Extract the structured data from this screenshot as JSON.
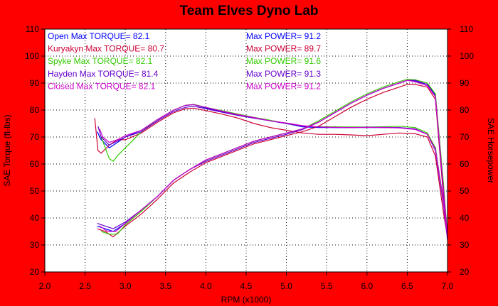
{
  "chart_data": {
    "type": "line",
    "title": "Team Elves Dyno Lab",
    "xlabel": "RPM (x1000)",
    "ylabel_left": "SAE Torque (ft-lbs)",
    "ylabel_right": "SAE Horsepower",
    "xlim": [
      2.0,
      7.0
    ],
    "ylim": [
      20,
      110
    ],
    "x_ticks": [
      "2.0",
      "2.5",
      "3.0",
      "3.5",
      "4.0",
      "4.5",
      "5.0",
      "5.5",
      "6.0",
      "6.5",
      "7.0"
    ],
    "y_ticks": [
      "20",
      "30",
      "40",
      "50",
      "60",
      "70",
      "80",
      "90",
      "100",
      "110"
    ],
    "background_color": "#ffffff",
    "frame_color": "#ff0000",
    "series": [
      {
        "name": "Open",
        "color": "#0000ff",
        "legend_torque": "Open  Max TORQUE= 82.1",
        "legend_power": "Max POWER= 91.2",
        "torque": [
          [
            2.65,
            72
          ],
          [
            2.7,
            69
          ],
          [
            2.8,
            66
          ],
          [
            2.9,
            68
          ],
          [
            3.0,
            70
          ],
          [
            3.2,
            72.5
          ],
          [
            3.4,
            76.5
          ],
          [
            3.6,
            80
          ],
          [
            3.75,
            81.7
          ],
          [
            3.85,
            82
          ],
          [
            4.0,
            80.8
          ],
          [
            4.2,
            79.5
          ],
          [
            4.4,
            78.2
          ],
          [
            4.6,
            77
          ],
          [
            4.8,
            76
          ],
          [
            5.0,
            75
          ],
          [
            5.2,
            73.8
          ],
          [
            5.4,
            73.5
          ],
          [
            5.6,
            73.5
          ],
          [
            5.8,
            73.5
          ],
          [
            6.0,
            73.5
          ],
          [
            6.2,
            73.5
          ],
          [
            6.4,
            73.5
          ],
          [
            6.6,
            73
          ],
          [
            6.75,
            71
          ],
          [
            6.85,
            66
          ],
          [
            6.95,
            46
          ],
          [
            7.0,
            33
          ]
        ],
        "power": [
          [
            2.65,
            37
          ],
          [
            2.75,
            36
          ],
          [
            2.85,
            35
          ],
          [
            3.0,
            38
          ],
          [
            3.2,
            43
          ],
          [
            3.4,
            48
          ],
          [
            3.6,
            54
          ],
          [
            3.8,
            58
          ],
          [
            4.0,
            61.5
          ],
          [
            4.3,
            65
          ],
          [
            4.6,
            68.5
          ],
          [
            5.0,
            71.5
          ],
          [
            5.2,
            73
          ],
          [
            5.4,
            75.5
          ],
          [
            5.6,
            79
          ],
          [
            5.8,
            82.5
          ],
          [
            6.0,
            85.5
          ],
          [
            6.2,
            88
          ],
          [
            6.4,
            90
          ],
          [
            6.5,
            91
          ],
          [
            6.6,
            90.7
          ],
          [
            6.75,
            89.5
          ],
          [
            6.85,
            85.5
          ],
          [
            6.95,
            52
          ],
          [
            7.0,
            33
          ]
        ]
      },
      {
        "name": "Kuryakyn",
        "color": "#cc0033",
        "legend_torque": "Kuryakyn  Max TORQUE= 80.7",
        "legend_power": "Max POWER= 89.7",
        "torque": [
          [
            2.62,
            77
          ],
          [
            2.66,
            65
          ],
          [
            2.7,
            64
          ],
          [
            2.8,
            67
          ],
          [
            2.9,
            69
          ],
          [
            3.0,
            69
          ],
          [
            3.2,
            71.5
          ],
          [
            3.4,
            75.5
          ],
          [
            3.6,
            79
          ],
          [
            3.75,
            80.5
          ],
          [
            3.85,
            80.7
          ],
          [
            4.0,
            79.8
          ],
          [
            4.2,
            78.5
          ],
          [
            4.4,
            77
          ],
          [
            4.6,
            75
          ],
          [
            4.8,
            73.5
          ],
          [
            5.0,
            72.5
          ],
          [
            5.2,
            71.5
          ],
          [
            5.4,
            71
          ],
          [
            5.6,
            71
          ],
          [
            5.8,
            70.8
          ],
          [
            6.0,
            70.5
          ],
          [
            6.2,
            71
          ],
          [
            6.4,
            71.5
          ],
          [
            6.6,
            71.2
          ],
          [
            6.75,
            70
          ],
          [
            6.85,
            63
          ],
          [
            6.95,
            42
          ],
          [
            7.0,
            33
          ]
        ],
        "power": [
          [
            2.65,
            36
          ],
          [
            2.75,
            35
          ],
          [
            2.85,
            33
          ],
          [
            3.0,
            37
          ],
          [
            3.2,
            41.5
          ],
          [
            3.4,
            47
          ],
          [
            3.6,
            53
          ],
          [
            3.8,
            57
          ],
          [
            4.0,
            60.5
          ],
          [
            4.3,
            64
          ],
          [
            4.6,
            67.5
          ],
          [
            5.0,
            70.5
          ],
          [
            5.2,
            72
          ],
          [
            5.4,
            74
          ],
          [
            5.6,
            77.5
          ],
          [
            5.8,
            81
          ],
          [
            6.0,
            84
          ],
          [
            6.2,
            86.5
          ],
          [
            6.4,
            88.5
          ],
          [
            6.5,
            89.5
          ],
          [
            6.6,
            89.5
          ],
          [
            6.75,
            88.5
          ],
          [
            6.85,
            84
          ],
          [
            6.95,
            48
          ],
          [
            7.0,
            33
          ]
        ]
      },
      {
        "name": "Spyke",
        "color": "#33cc00",
        "legend_torque": "Spyke  Max TORQUE= 82.1",
        "legend_power": "Max POWER= 91.6",
        "torque": [
          [
            2.7,
            70
          ],
          [
            2.75,
            66
          ],
          [
            2.8,
            62
          ],
          [
            2.85,
            61
          ],
          [
            2.9,
            63
          ],
          [
            3.0,
            66
          ],
          [
            3.1,
            69
          ],
          [
            3.2,
            72
          ],
          [
            3.4,
            76.5
          ],
          [
            3.6,
            80
          ],
          [
            3.75,
            81.8
          ],
          [
            3.85,
            82.1
          ],
          [
            4.0,
            81
          ],
          [
            4.2,
            79.8
          ],
          [
            4.4,
            78.5
          ],
          [
            4.6,
            77.3
          ],
          [
            4.8,
            76.2
          ],
          [
            5.0,
            75
          ],
          [
            5.2,
            74
          ],
          [
            5.4,
            73.8
          ],
          [
            5.6,
            73.8
          ],
          [
            5.8,
            73.7
          ],
          [
            6.0,
            73.7
          ],
          [
            6.2,
            73.8
          ],
          [
            6.4,
            74
          ],
          [
            6.6,
            73.5
          ],
          [
            6.75,
            71.5
          ],
          [
            6.85,
            66
          ],
          [
            6.95,
            46
          ],
          [
            7.0,
            33
          ]
        ],
        "power": [
          [
            2.7,
            35
          ],
          [
            2.8,
            34
          ],
          [
            2.9,
            34
          ],
          [
            3.0,
            37.5
          ],
          [
            3.2,
            42.5
          ],
          [
            3.4,
            48
          ],
          [
            3.6,
            54
          ],
          [
            3.8,
            58
          ],
          [
            4.0,
            61.5
          ],
          [
            4.3,
            65
          ],
          [
            4.6,
            68.5
          ],
          [
            5.0,
            71.5
          ],
          [
            5.2,
            73
          ],
          [
            5.4,
            76
          ],
          [
            5.6,
            79.5
          ],
          [
            5.8,
            83
          ],
          [
            6.0,
            86
          ],
          [
            6.2,
            88.5
          ],
          [
            6.4,
            90.5
          ],
          [
            6.5,
            91.4
          ],
          [
            6.6,
            91.2
          ],
          [
            6.75,
            90
          ],
          [
            6.85,
            86
          ],
          [
            6.95,
            53
          ],
          [
            7.0,
            33
          ]
        ]
      },
      {
        "name": "Hayden",
        "color": "#6600cc",
        "legend_torque": "Hayden  Max TORQUE= 81.4",
        "legend_power": "Max POWER= 91.3",
        "torque": [
          [
            2.66,
            74
          ],
          [
            2.7,
            70
          ],
          [
            2.8,
            67
          ],
          [
            2.9,
            68.5
          ],
          [
            3.0,
            70
          ],
          [
            3.2,
            72
          ],
          [
            3.4,
            76
          ],
          [
            3.6,
            79.5
          ],
          [
            3.75,
            81
          ],
          [
            3.85,
            81.4
          ],
          [
            4.0,
            80.5
          ],
          [
            4.2,
            79.2
          ],
          [
            4.4,
            78
          ],
          [
            4.6,
            77
          ],
          [
            4.8,
            76
          ],
          [
            5.0,
            75
          ],
          [
            5.2,
            74
          ],
          [
            5.4,
            73.7
          ],
          [
            5.6,
            73.5
          ],
          [
            5.8,
            73.5
          ],
          [
            6.0,
            73.6
          ],
          [
            6.2,
            73.6
          ],
          [
            6.4,
            73.5
          ],
          [
            6.6,
            73
          ],
          [
            6.75,
            71
          ],
          [
            6.85,
            65
          ],
          [
            6.95,
            45
          ],
          [
            7.0,
            32
          ]
        ],
        "power": [
          [
            2.65,
            38
          ],
          [
            2.75,
            37
          ],
          [
            2.85,
            36
          ],
          [
            3.0,
            38.5
          ],
          [
            3.2,
            43
          ],
          [
            3.4,
            48
          ],
          [
            3.6,
            54
          ],
          [
            3.8,
            58
          ],
          [
            4.0,
            61
          ],
          [
            4.3,
            64.5
          ],
          [
            4.6,
            68
          ],
          [
            5.0,
            71
          ],
          [
            5.2,
            72.8
          ],
          [
            5.4,
            75.5
          ],
          [
            5.6,
            79
          ],
          [
            5.8,
            82.5
          ],
          [
            6.0,
            85.5
          ],
          [
            6.2,
            88
          ],
          [
            6.4,
            90
          ],
          [
            6.5,
            91
          ],
          [
            6.6,
            91
          ],
          [
            6.75,
            89.5
          ],
          [
            6.85,
            85
          ],
          [
            6.95,
            50
          ],
          [
            7.0,
            32
          ]
        ]
      },
      {
        "name": "Closed",
        "color": "#cc00cc",
        "legend_torque": "Closed  Max TORQUE= 82.1",
        "legend_power": "Max POWER= 91.2",
        "torque": [
          [
            2.68,
            73
          ],
          [
            2.72,
            70
          ],
          [
            2.8,
            68
          ],
          [
            2.9,
            69
          ],
          [
            3.0,
            70.5
          ],
          [
            3.2,
            72.5
          ],
          [
            3.4,
            76.5
          ],
          [
            3.6,
            80
          ],
          [
            3.75,
            81.8
          ],
          [
            3.85,
            82
          ],
          [
            4.0,
            81
          ],
          [
            4.2,
            79.6
          ],
          [
            4.4,
            78.3
          ],
          [
            4.6,
            77.2
          ],
          [
            4.8,
            76
          ],
          [
            5.0,
            75.2
          ],
          [
            5.2,
            74.2
          ],
          [
            5.4,
            73.7
          ],
          [
            5.6,
            73.6
          ],
          [
            5.8,
            73.5
          ],
          [
            6.0,
            73.6
          ],
          [
            6.2,
            73.5
          ],
          [
            6.4,
            73.4
          ],
          [
            6.6,
            72.8
          ],
          [
            6.75,
            71
          ],
          [
            6.85,
            65.5
          ],
          [
            6.95,
            46
          ],
          [
            7.0,
            33
          ]
        ],
        "power": [
          [
            2.68,
            37
          ],
          [
            2.78,
            35
          ],
          [
            2.88,
            35
          ],
          [
            3.0,
            38
          ],
          [
            3.2,
            43
          ],
          [
            3.4,
            48
          ],
          [
            3.6,
            54
          ],
          [
            3.8,
            58
          ],
          [
            4.0,
            61.5
          ],
          [
            4.3,
            65
          ],
          [
            4.6,
            68.5
          ],
          [
            5.0,
            71.5
          ],
          [
            5.2,
            73
          ],
          [
            5.4,
            75.5
          ],
          [
            5.6,
            79
          ],
          [
            5.8,
            82.5
          ],
          [
            6.0,
            85.5
          ],
          [
            6.2,
            88
          ],
          [
            6.4,
            90
          ],
          [
            6.5,
            91
          ],
          [
            6.6,
            90.5
          ],
          [
            6.75,
            89
          ],
          [
            6.85,
            85
          ],
          [
            6.95,
            51
          ],
          [
            7.0,
            33
          ]
        ]
      }
    ]
  }
}
